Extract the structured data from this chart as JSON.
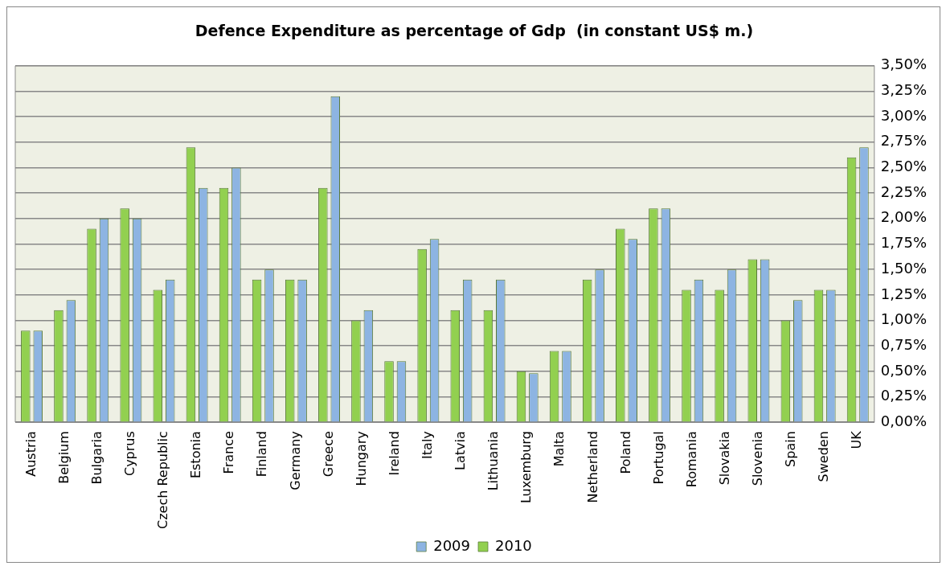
{
  "chart_data": {
    "type": "bar",
    "title": "Defence Expenditure as percentage of Gdp  (in constant US$ m.)",
    "categories": [
      "Austria",
      "Belgium",
      "Bulgaria",
      "Cyprus",
      "Czech Republic",
      "Estonia",
      "France",
      "Finland",
      "Germany",
      "Greece",
      "Hungary",
      "Ireland",
      "Italy",
      "Latvia",
      "Lithuania",
      "Luxemburg",
      "Malta",
      "Netherland",
      "Poland",
      "Portugal",
      "Romania",
      "Slovakia",
      "Slovenia",
      "Spain",
      "Sweden",
      "UK"
    ],
    "series": [
      {
        "name": "2010",
        "color": "#92d050",
        "values": [
          0.9,
          1.1,
          1.9,
          2.1,
          1.3,
          2.7,
          2.3,
          1.4,
          1.4,
          2.3,
          1.0,
          0.6,
          1.7,
          1.1,
          1.1,
          0.5,
          0.7,
          1.4,
          1.9,
          2.1,
          1.3,
          1.3,
          1.6,
          1.0,
          1.3,
          2.6
        ]
      },
      {
        "name": "2009",
        "color": "#8db4e2",
        "values": [
          0.9,
          1.2,
          2.0,
          2.0,
          1.4,
          2.3,
          2.5,
          1.5,
          1.4,
          3.2,
          1.1,
          0.6,
          1.8,
          1.4,
          1.4,
          0.48,
          0.7,
          1.5,
          1.8,
          2.1,
          1.4,
          1.5,
          1.6,
          1.2,
          1.3,
          2.7
        ]
      }
    ],
    "ylim": [
      0,
      3.5
    ],
    "yticks": [
      {
        "value": 0,
        "label": "0,00%"
      },
      {
        "value": 0.25,
        "label": "0,25%"
      },
      {
        "value": 0.5,
        "label": "0,50%"
      },
      {
        "value": 0.75,
        "label": "0,75%"
      },
      {
        "value": 1,
        "label": "1,00%"
      },
      {
        "value": 1.25,
        "label": "1,25%"
      },
      {
        "value": 1.5,
        "label": "1,50%"
      },
      {
        "value": 1.75,
        "label": "1,75%"
      },
      {
        "value": 2,
        "label": "2,00%"
      },
      {
        "value": 2.25,
        "label": "2,25%"
      },
      {
        "value": 2.5,
        "label": "2,50%"
      },
      {
        "value": 2.75,
        "label": "2,75%"
      },
      {
        "value": 3,
        "label": "3,00%"
      },
      {
        "value": 3.25,
        "label": "3,25%"
      },
      {
        "value": 3.5,
        "label": "3,50%"
      }
    ],
    "grid": "y",
    "legend": "bottom"
  }
}
